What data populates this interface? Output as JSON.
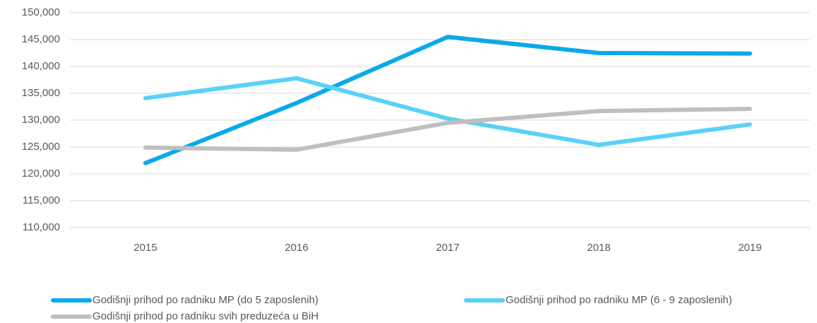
{
  "chart_data": {
    "type": "line",
    "categories": [
      "2015",
      "2016",
      "2017",
      "2018",
      "2019"
    ],
    "series": [
      {
        "name": "Godišnji prihod po radniku MP (do 5 zaposlenih)",
        "color": "#0aa9ea",
        "values": [
          122000,
          133200,
          145500,
          142500,
          142400
        ]
      },
      {
        "name": "Godišnji prihod po radniku MP (6 - 9 zaposlenih)",
        "color": "#5ad2f8",
        "values": [
          134100,
          137800,
          130300,
          125400,
          129200
        ]
      },
      {
        "name": "Godišnji prihod po radniku svih preduzeća u BiH",
        "color": "#bfbfbf",
        "values": [
          124900,
          124500,
          129500,
          131700,
          132100
        ]
      }
    ],
    "ylim": [
      110000,
      150000
    ],
    "yticks": [
      {
        "value": 110000,
        "label": "110,000"
      },
      {
        "value": 115000,
        "label": "115,000"
      },
      {
        "value": 120000,
        "label": "120,000"
      },
      {
        "value": 125000,
        "label": "125,000"
      },
      {
        "value": 130000,
        "label": "130,000"
      },
      {
        "value": 135000,
        "label": "135,000"
      },
      {
        "value": 140000,
        "label": "140,000"
      },
      {
        "value": 145000,
        "label": "145,000"
      },
      {
        "value": 150000,
        "label": "150,000"
      }
    ],
    "grid": true
  }
}
